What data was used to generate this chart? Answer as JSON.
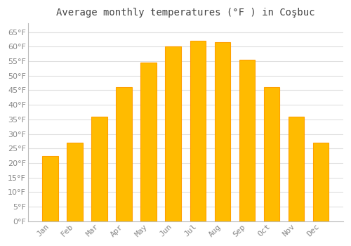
{
  "title": "Average monthly temperatures (°F ) in Coşbuc",
  "months": [
    "Jan",
    "Feb",
    "Mar",
    "Apr",
    "May",
    "Jun",
    "Jul",
    "Aug",
    "Sep",
    "Oct",
    "Nov",
    "Dec"
  ],
  "values": [
    22.5,
    27,
    36,
    46,
    54.5,
    60,
    62,
    61.5,
    55.5,
    46,
    36,
    27
  ],
  "ylim": [
    0,
    68
  ],
  "yticks": [
    0,
    5,
    10,
    15,
    20,
    25,
    30,
    35,
    40,
    45,
    50,
    55,
    60,
    65
  ],
  "background_color": "#ffffff",
  "plot_bg_color": "#ffffff",
  "grid_color": "#e0e0e0",
  "title_fontsize": 10,
  "tick_fontsize": 8,
  "bar_color_face": "#FFBB00",
  "bar_color_edge": "#FFA000",
  "title_color": "#444444",
  "tick_color": "#888888",
  "bar_width": 0.65
}
